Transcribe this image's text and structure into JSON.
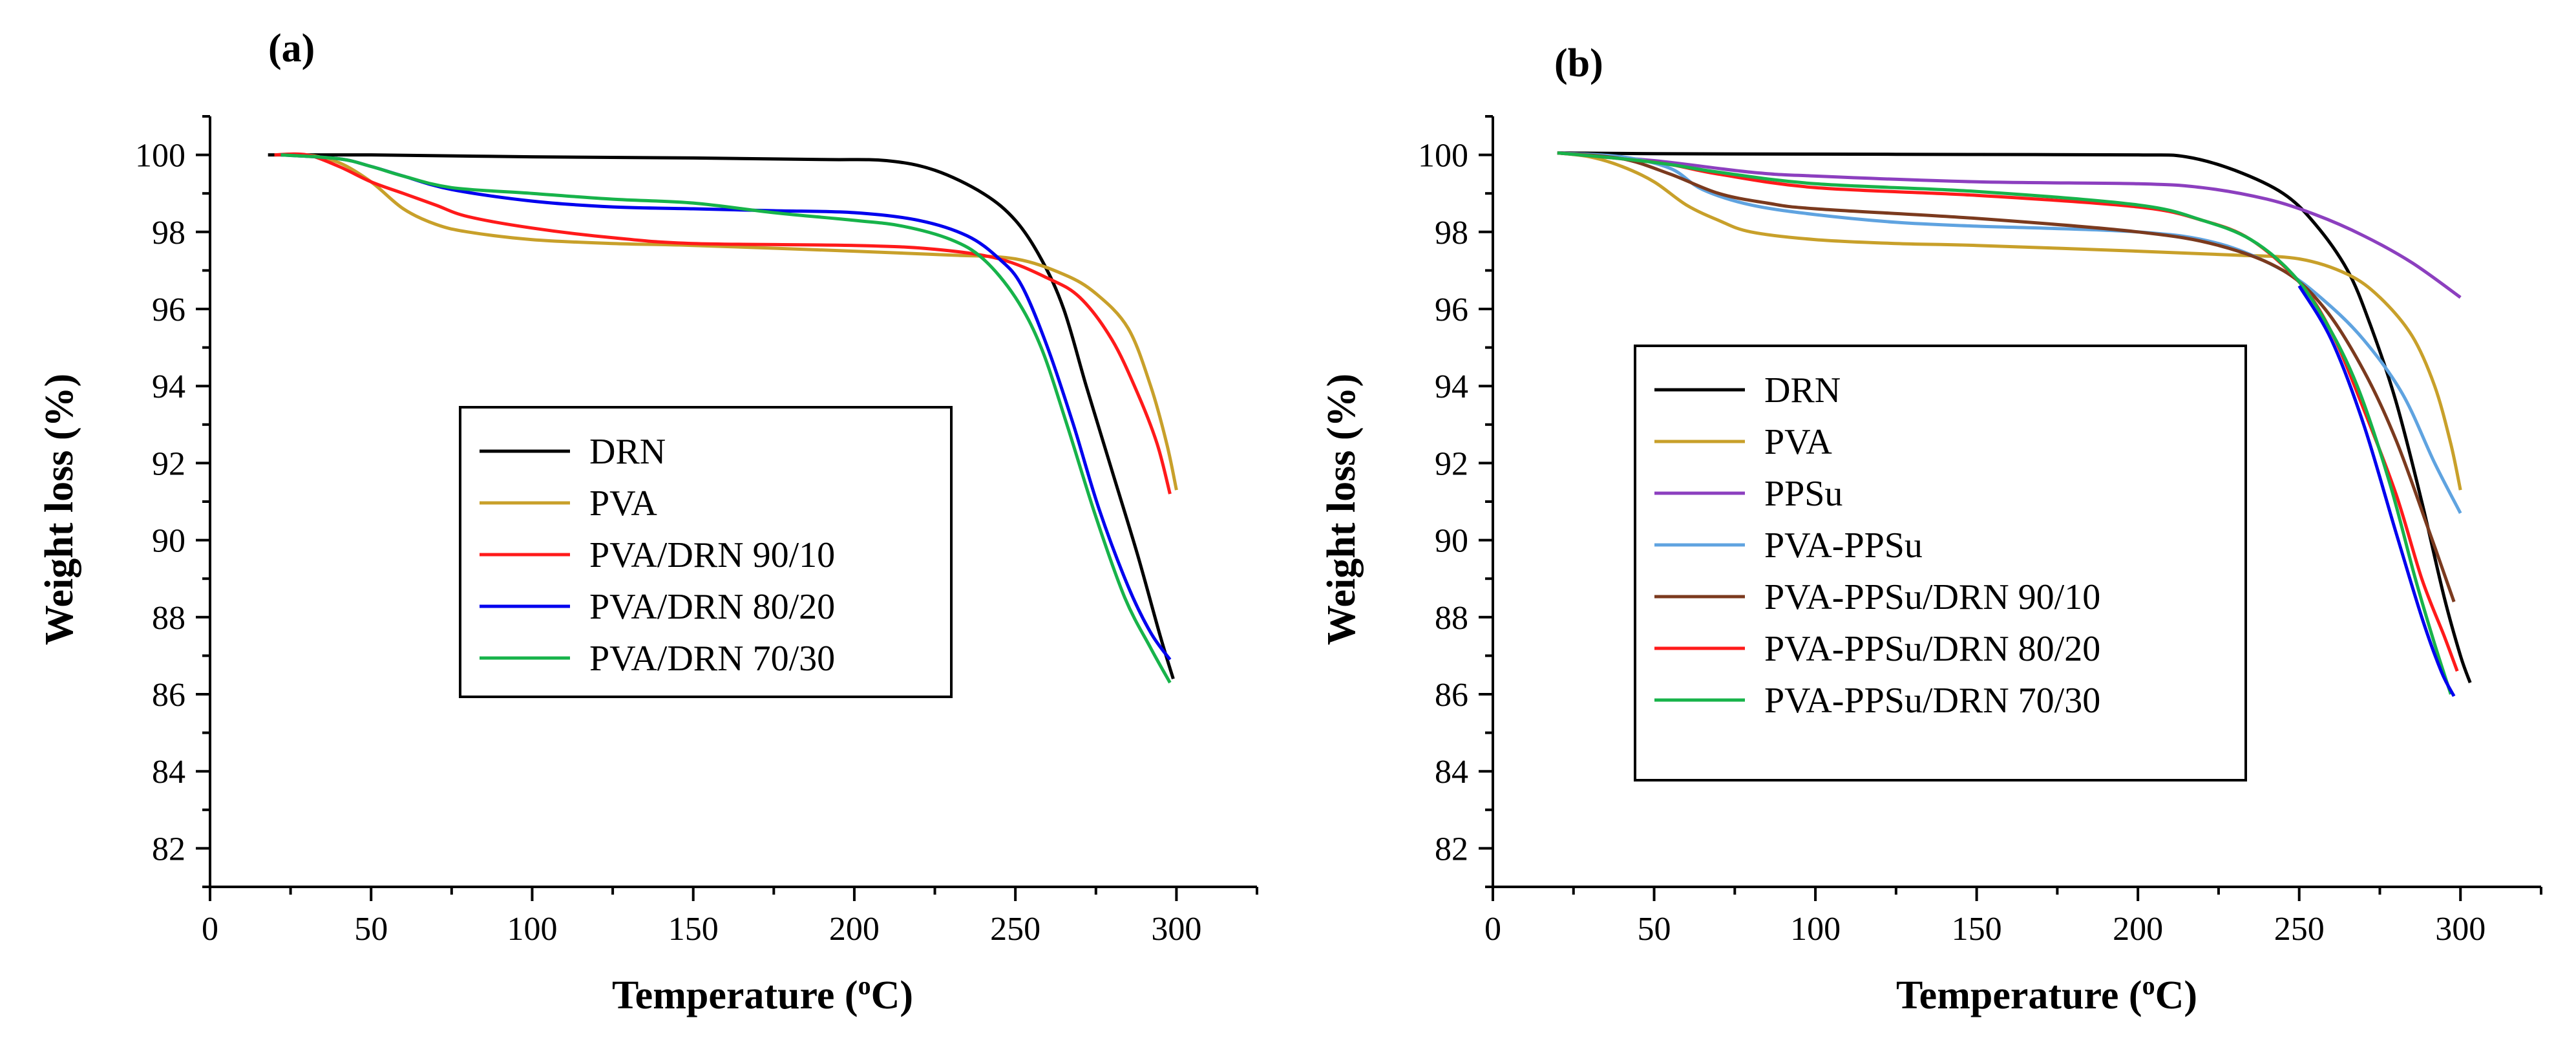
{
  "chart_data": [
    {
      "type": "line",
      "panel_label": "(a)",
      "xlabel": "Temperature (",
      "xlabel_sup": "o",
      "xlabel_tail": "C)",
      "ylabel": "Weight loss (%)",
      "xlim": [
        0,
        325
      ],
      "ylim": [
        81,
        101
      ],
      "xticks": [
        0,
        50,
        100,
        150,
        200,
        250,
        300
      ],
      "yticks": [
        82,
        84,
        86,
        88,
        90,
        92,
        94,
        96,
        98,
        100
      ],
      "legend_position": "center",
      "series": [
        {
          "name": "DRN",
          "color": "#000000",
          "points": [
            [
              18,
              100
            ],
            [
              50,
              100
            ],
            [
              100,
              99.95
            ],
            [
              150,
              99.92
            ],
            [
              190,
              99.88
            ],
            [
              210,
              99.85
            ],
            [
              225,
              99.6
            ],
            [
              240,
              99.0
            ],
            [
              250,
              98.3
            ],
            [
              258,
              97.3
            ],
            [
              265,
              96.0
            ],
            [
              272,
              94.0
            ],
            [
              280,
              91.8
            ],
            [
              288,
              89.6
            ],
            [
              295,
              87.5
            ],
            [
              299,
              86.4
            ]
          ]
        },
        {
          "name": "PVA",
          "color": "#c8a02a",
          "points": [
            [
              20,
              100
            ],
            [
              30,
              100
            ],
            [
              40,
              99.8
            ],
            [
              50,
              99.3
            ],
            [
              60,
              98.6
            ],
            [
              70,
              98.2
            ],
            [
              80,
              98.0
            ],
            [
              100,
              97.8
            ],
            [
              125,
              97.7
            ],
            [
              150,
              97.65
            ],
            [
              200,
              97.5
            ],
            [
              230,
              97.4
            ],
            [
              250,
              97.3
            ],
            [
              265,
              96.9
            ],
            [
              275,
              96.4
            ],
            [
              285,
              95.5
            ],
            [
              292,
              94.0
            ],
            [
              297,
              92.5
            ],
            [
              300,
              91.3
            ]
          ]
        },
        {
          "name": "PVA/DRN 90/10",
          "color": "#ff1a1a",
          "points": [
            [
              20,
              100
            ],
            [
              30,
              100
            ],
            [
              40,
              99.7
            ],
            [
              50,
              99.3
            ],
            [
              60,
              99.0
            ],
            [
              70,
              98.7
            ],
            [
              80,
              98.4
            ],
            [
              100,
              98.1
            ],
            [
              125,
              97.85
            ],
            [
              150,
              97.7
            ],
            [
              200,
              97.65
            ],
            [
              225,
              97.55
            ],
            [
              245,
              97.3
            ],
            [
              260,
              96.8
            ],
            [
              270,
              96.3
            ],
            [
              280,
              95.2
            ],
            [
              288,
              93.8
            ],
            [
              294,
              92.5
            ],
            [
              298,
              91.2
            ]
          ]
        },
        {
          "name": "PVA/DRN 80/20",
          "color": "#0000ee",
          "points": [
            [
              22,
              100
            ],
            [
              40,
              99.9
            ],
            [
              50,
              99.7
            ],
            [
              60,
              99.45
            ],
            [
              75,
              99.1
            ],
            [
              100,
              98.8
            ],
            [
              125,
              98.65
            ],
            [
              150,
              98.6
            ],
            [
              175,
              98.55
            ],
            [
              200,
              98.5
            ],
            [
              220,
              98.3
            ],
            [
              235,
              97.9
            ],
            [
              245,
              97.3
            ],
            [
              252,
              96.6
            ],
            [
              260,
              95.0
            ],
            [
              268,
              93.0
            ],
            [
              276,
              90.8
            ],
            [
              285,
              88.8
            ],
            [
              292,
              87.6
            ],
            [
              298,
              86.9
            ]
          ]
        },
        {
          "name": "PVA/DRN 70/30",
          "color": "#17b34a",
          "points": [
            [
              22,
              100
            ],
            [
              40,
              99.9
            ],
            [
              50,
              99.7
            ],
            [
              60,
              99.45
            ],
            [
              75,
              99.15
            ],
            [
              100,
              99.0
            ],
            [
              125,
              98.85
            ],
            [
              150,
              98.75
            ],
            [
              175,
              98.5
            ],
            [
              200,
              98.3
            ],
            [
              215,
              98.15
            ],
            [
              230,
              97.8
            ],
            [
              240,
              97.3
            ],
            [
              250,
              96.3
            ],
            [
              258,
              95.0
            ],
            [
              266,
              93.0
            ],
            [
              275,
              90.6
            ],
            [
              284,
              88.5
            ],
            [
              292,
              87.2
            ],
            [
              298,
              86.3
            ]
          ]
        }
      ],
      "legend": [
        "DRN",
        "PVA",
        "PVA/DRN 90/10",
        "PVA/DRN 80/20",
        "PVA/DRN 70/30"
      ]
    },
    {
      "type": "line",
      "panel_label": "(b)",
      "xlabel": "Temperature (",
      "xlabel_sup": "o",
      "xlabel_tail": "C)",
      "ylabel": "Weight loss (%)",
      "xlim": [
        0,
        325
      ],
      "ylim": [
        81,
        101
      ],
      "xticks": [
        0,
        50,
        100,
        150,
        200,
        250,
        300
      ],
      "yticks": [
        82,
        84,
        86,
        88,
        90,
        92,
        94,
        96,
        98,
        100
      ],
      "legend_position": "center",
      "series": [
        {
          "name": "DRN",
          "color": "#000000",
          "points": [
            [
              20,
              100.05
            ],
            [
              50,
              100.03
            ],
            [
              100,
              100.02
            ],
            [
              150,
              100.01
            ],
            [
              200,
              100.0
            ],
            [
              215,
              99.95
            ],
            [
              230,
              99.6
            ],
            [
              245,
              99.0
            ],
            [
              255,
              98.2
            ],
            [
              265,
              97.0
            ],
            [
              272,
              95.6
            ],
            [
              280,
              93.6
            ],
            [
              288,
              91.0
            ],
            [
              295,
              88.5
            ],
            [
              300,
              87.0
            ],
            [
              303,
              86.3
            ]
          ]
        },
        {
          "name": "PVA",
          "color": "#c8a02a",
          "points": [
            [
              20,
              100.05
            ],
            [
              30,
              99.95
            ],
            [
              40,
              99.7
            ],
            [
              50,
              99.3
            ],
            [
              60,
              98.7
            ],
            [
              70,
              98.3
            ],
            [
              80,
              98.0
            ],
            [
              100,
              97.8
            ],
            [
              125,
              97.7
            ],
            [
              150,
              97.65
            ],
            [
              200,
              97.5
            ],
            [
              230,
              97.4
            ],
            [
              250,
              97.3
            ],
            [
              265,
              96.9
            ],
            [
              275,
              96.3
            ],
            [
              285,
              95.3
            ],
            [
              292,
              94.0
            ],
            [
              297,
              92.5
            ],
            [
              300,
              91.3
            ]
          ]
        },
        {
          "name": "PPSu",
          "color": "#8c3fbf",
          "points": [
            [
              20,
              100.05
            ],
            [
              50,
              99.85
            ],
            [
              80,
              99.55
            ],
            [
              100,
              99.45
            ],
            [
              150,
              99.3
            ],
            [
              200,
              99.25
            ],
            [
              220,
              99.15
            ],
            [
              240,
              98.85
            ],
            [
              255,
              98.45
            ],
            [
              270,
              97.9
            ],
            [
              285,
              97.2
            ],
            [
              300,
              96.3
            ]
          ]
        },
        {
          "name": "PVA-PPSu",
          "color": "#5fa3e0",
          "points": [
            [
              20,
              100.05
            ],
            [
              40,
              99.95
            ],
            [
              55,
              99.65
            ],
            [
              65,
              99.1
            ],
            [
              80,
              98.7
            ],
            [
              100,
              98.45
            ],
            [
              125,
              98.25
            ],
            [
              150,
              98.15
            ],
            [
              200,
              98.0
            ],
            [
              225,
              97.7
            ],
            [
              245,
              97.0
            ],
            [
              258,
              96.2
            ],
            [
              270,
              95.2
            ],
            [
              282,
              93.8
            ],
            [
              292,
              92.0
            ],
            [
              300,
              90.7
            ]
          ]
        },
        {
          "name": "PVA-PPSu/DRN 90/10",
          "color": "#7b3a1e",
          "points": [
            [
              20,
              100.05
            ],
            [
              40,
              99.9
            ],
            [
              55,
              99.5
            ],
            [
              70,
              99.0
            ],
            [
              85,
              98.75
            ],
            [
              100,
              98.6
            ],
            [
              150,
              98.35
            ],
            [
              200,
              98.0
            ],
            [
              225,
              97.65
            ],
            [
              245,
              97.0
            ],
            [
              258,
              96.0
            ],
            [
              270,
              94.4
            ],
            [
              280,
              92.6
            ],
            [
              290,
              90.3
            ],
            [
              298,
              88.4
            ]
          ]
        },
        {
          "name": "PVA-PPSu/DRN 80/20",
          "color": "#ff1a1a",
          "points": [
            [
              20,
              100.05
            ],
            [
              40,
              99.9
            ],
            [
              55,
              99.75
            ],
            [
              70,
              99.5
            ],
            [
              100,
              99.15
            ],
            [
              150,
              98.95
            ],
            [
              200,
              98.65
            ],
            [
              220,
              98.3
            ],
            [
              235,
              97.8
            ],
            [
              250,
              96.7
            ],
            [
              260,
              95.4
            ],
            [
              270,
              93.4
            ],
            [
              280,
              91.2
            ],
            [
              288,
              89.0
            ],
            [
              295,
              87.5
            ],
            [
              299,
              86.6
            ]
          ]
        },
        {
          "name": "PVA-PPSu/DRN 70/30",
          "color": "#17b34a",
          "points": [
            [
              20,
              100.05
            ],
            [
              40,
              99.9
            ],
            [
              55,
              99.75
            ],
            [
              70,
              99.55
            ],
            [
              100,
              99.25
            ],
            [
              150,
              99.05
            ],
            [
              200,
              98.7
            ],
            [
              220,
              98.3
            ],
            [
              235,
              97.8
            ],
            [
              248,
              96.9
            ],
            [
              258,
              95.7
            ],
            [
              268,
              94.0
            ],
            [
              278,
              91.5
            ],
            [
              286,
              89.0
            ],
            [
              292,
              87.3
            ],
            [
              297,
              86.0
            ]
          ]
        },
        {
          "name": "_blue_end",
          "color": "#0000ee",
          "hidden_in_legend": true,
          "points": [
            [
              250,
              96.6
            ],
            [
              260,
              95.2
            ],
            [
              270,
              93.0
            ],
            [
              280,
              90.2
            ],
            [
              288,
              88.0
            ],
            [
              294,
              86.6
            ],
            [
              298,
              85.95
            ]
          ]
        }
      ],
      "legend": [
        "DRN",
        "PVA",
        "PPSu",
        "PVA-PPSu",
        "PVA-PPSu/DRN 90/10",
        "PVA-PPSu/DRN 80/20",
        "PVA-PPSu/DRN 70/30"
      ]
    }
  ]
}
